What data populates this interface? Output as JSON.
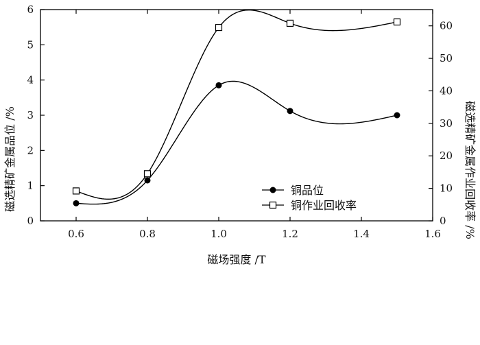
{
  "chart_data": {
    "type": "line",
    "x": [
      0.6,
      0.8,
      1.0,
      1.2,
      1.5
    ],
    "xlabel": "磁场强度 /T",
    "ylabel_left": "磁选精矿金属品位 /%",
    "ylabel_right": "磁选精矿金属作业回收率 /%",
    "xlim": [
      0.5,
      1.6
    ],
    "ylim_left": [
      0,
      6
    ],
    "ylim_right": [
      0,
      65
    ],
    "x_ticks": [
      "0.6",
      "0.8",
      "1.0",
      "1.2",
      "1.4",
      "1.6"
    ],
    "y_left_ticks": [
      "0",
      "1",
      "2",
      "3",
      "4",
      "5",
      "6"
    ],
    "y_right_ticks": [
      "0",
      "10",
      "20",
      "30",
      "40",
      "50",
      "60"
    ],
    "grid": false,
    "legend_position": "center-right",
    "series": [
      {
        "name": "铜品位",
        "axis": "left",
        "marker": "filled-circle",
        "values": [
          0.5,
          1.15,
          3.85,
          3.12,
          3.0
        ]
      },
      {
        "name": "铜作业回收率",
        "axis": "right",
        "marker": "open-square",
        "values": [
          9.2,
          14.5,
          59.5,
          60.8,
          61.2
        ]
      }
    ]
  }
}
